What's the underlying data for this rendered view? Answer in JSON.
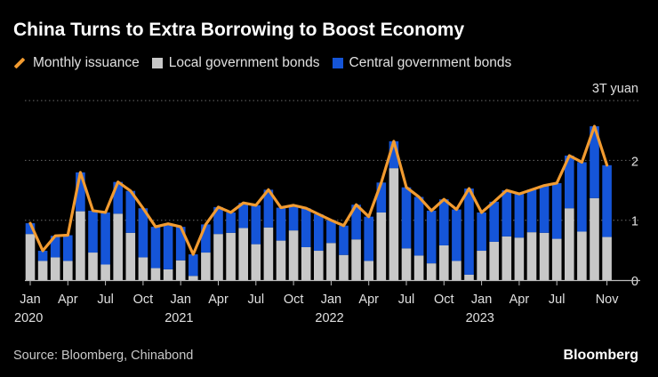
{
  "chart_data": {
    "type": "bar",
    "title": "China Turns to Extra Borrowing to Boost Economy",
    "unit_label": "3T yuan",
    "ylim": [
      0,
      3
    ],
    "yticks": [
      0,
      1,
      2,
      3
    ],
    "ytick_labels": [
      "0",
      "1",
      "2",
      ""
    ],
    "legend": [
      {
        "name": "Monthly issuance",
        "kind": "line",
        "color": "#f29b30"
      },
      {
        "name": "Local government bonds",
        "kind": "bar",
        "color": "#c8c8c8"
      },
      {
        "name": "Central government bonds",
        "kind": "bar",
        "color": "#1555d8"
      }
    ],
    "x_labels": [
      {
        "month_index": 0,
        "label": "Jan",
        "year": "2020"
      },
      {
        "month_index": 3,
        "label": "Apr"
      },
      {
        "month_index": 6,
        "label": "Jul"
      },
      {
        "month_index": 9,
        "label": "Oct"
      },
      {
        "month_index": 12,
        "label": "Jan",
        "year": "2021"
      },
      {
        "month_index": 15,
        "label": "Apr"
      },
      {
        "month_index": 18,
        "label": "Jul"
      },
      {
        "month_index": 21,
        "label": "Oct"
      },
      {
        "month_index": 24,
        "label": "Jan",
        "year": "2022"
      },
      {
        "month_index": 27,
        "label": "Apr"
      },
      {
        "month_index": 30,
        "label": "Jul"
      },
      {
        "month_index": 33,
        "label": "Oct"
      },
      {
        "month_index": 36,
        "label": "Jan",
        "year": "2023"
      },
      {
        "month_index": 39,
        "label": "Apr"
      },
      {
        "month_index": 42,
        "label": "Jul"
      },
      {
        "month_index": 46,
        "label": "Nov"
      }
    ],
    "series": [
      {
        "name": "Local government bonds",
        "values": [
          0.77,
          0.32,
          0.38,
          0.32,
          1.15,
          0.46,
          0.26,
          1.11,
          0.79,
          0.38,
          0.2,
          0.18,
          0.33,
          0.07,
          0.46,
          0.77,
          0.79,
          0.87,
          0.6,
          0.88,
          0.66,
          0.83,
          0.55,
          0.49,
          0.62,
          0.42,
          0.68,
          0.32,
          1.13,
          1.87,
          0.53,
          0.41,
          0.28,
          0.58,
          0.32,
          0.09,
          0.49,
          0.64,
          0.73,
          0.71,
          0.8,
          0.79,
          0.69,
          1.2,
          0.81,
          1.37,
          0.72
        ]
      },
      {
        "name": "Central government bonds",
        "values": [
          0.18,
          0.17,
          0.36,
          0.43,
          0.65,
          0.7,
          0.87,
          0.53,
          0.7,
          0.82,
          0.69,
          0.76,
          0.56,
          0.36,
          0.47,
          0.45,
          0.34,
          0.42,
          0.65,
          0.63,
          0.55,
          0.42,
          0.65,
          0.61,
          0.38,
          0.49,
          0.58,
          0.74,
          0.5,
          0.45,
          1.02,
          0.98,
          0.88,
          0.77,
          0.86,
          1.44,
          0.64,
          0.67,
          0.77,
          0.73,
          0.71,
          0.79,
          0.93,
          0.88,
          1.16,
          1.2,
          1.2
        ]
      },
      {
        "name": "Monthly issuance",
        "values": [
          0.95,
          0.49,
          0.74,
          0.75,
          1.8,
          1.16,
          1.13,
          1.64,
          1.49,
          1.2,
          0.89,
          0.94,
          0.89,
          0.43,
          0.93,
          1.22,
          1.13,
          1.29,
          1.25,
          1.51,
          1.21,
          1.25,
          1.2,
          1.1,
          1.0,
          0.91,
          1.26,
          1.06,
          1.63,
          2.32,
          1.55,
          1.39,
          1.16,
          1.35,
          1.18,
          1.53,
          1.13,
          1.31,
          1.5,
          1.44,
          1.51,
          1.58,
          1.62,
          2.08,
          1.97,
          2.57,
          1.92
        ]
      }
    ]
  },
  "source": "Source: Bloomberg, Chinabond",
  "brand": "Bloomberg"
}
